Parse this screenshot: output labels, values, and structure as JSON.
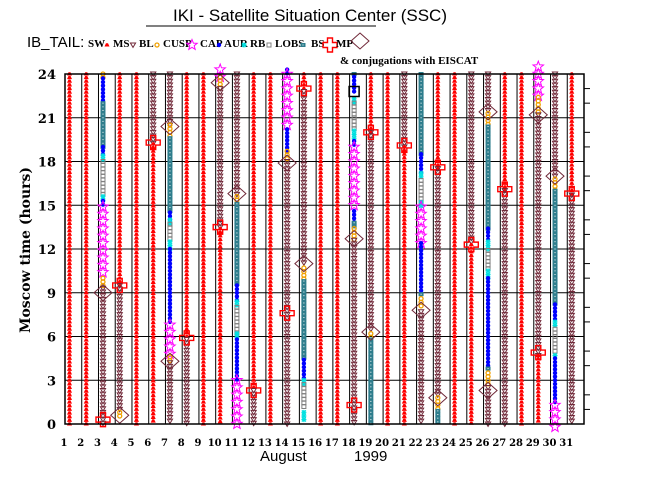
{
  "header": {
    "title": "IKI - Satellite Situation Center (SSC)",
    "mission": "IB_TAIL:",
    "legend": [
      {
        "key": "sw",
        "label": "SW",
        "color": "#ff0000"
      },
      {
        "key": "ms",
        "label": "MS",
        "color": "#702838"
      },
      {
        "key": "bl",
        "label": "BL",
        "color": "#f0a000"
      },
      {
        "key": "cusp",
        "label": "CUSP",
        "color": "#ff00ff"
      },
      {
        "key": "cap",
        "label": "CAP",
        "color": "#0000ff"
      },
      {
        "key": "aur",
        "label": "AUR",
        "color": "#00e0e0"
      },
      {
        "key": "rb",
        "label": "RB",
        "color": "#808080"
      },
      {
        "key": "lobs",
        "label": "LOBS",
        "color": "#2e7d8c"
      },
      {
        "key": "bs",
        "label": "BS",
        "color": "#ff0000"
      },
      {
        "key": "mp",
        "label": "MP",
        "color": "#702838"
      }
    ],
    "conjugation_note": "& conjugations with EISCAT"
  },
  "chart_data": {
    "type": "scatter",
    "xlabel_month": "August",
    "xlabel_year": "1999",
    "ylabel": "Moscow time (hours)",
    "xlim": [
      1,
      31
    ],
    "ylim": [
      0,
      24
    ],
    "x_ticks": [
      1,
      2,
      3,
      4,
      5,
      6,
      7,
      8,
      9,
      10,
      11,
      12,
      13,
      14,
      15,
      16,
      17,
      18,
      19,
      20,
      21,
      22,
      23,
      24,
      25,
      26,
      27,
      28,
      29,
      30,
      31
    ],
    "y_ticks": [
      0,
      3,
      6,
      9,
      12,
      15,
      18,
      21,
      24
    ],
    "grid": true,
    "days": [
      {
        "day": 1,
        "segments": [
          [
            "sw",
            24,
            0
          ]
        ],
        "events": []
      },
      {
        "day": 2,
        "segments": [
          [
            "sw",
            24,
            0
          ]
        ],
        "events": []
      },
      {
        "day": 3,
        "segments": [
          [
            "bl",
            24,
            23.7
          ],
          [
            "cap",
            23.7,
            22
          ],
          [
            "lobs",
            22,
            19
          ],
          [
            "cap",
            19,
            18.4
          ],
          [
            "aur",
            18.4,
            18
          ],
          [
            "rb",
            18,
            15.6
          ],
          [
            "aur",
            15.6,
            15.3
          ],
          [
            "cap",
            15.3,
            14.9
          ],
          [
            "cusp",
            14.9,
            10
          ],
          [
            "bl",
            10,
            9.3
          ],
          [
            "ms",
            9.3,
            0
          ]
        ],
        "events": [
          [
            "mp",
            9
          ],
          [
            "bs",
            0.3
          ]
        ]
      },
      {
        "day": 4,
        "segments": [
          [
            "sw",
            24,
            9.5
          ],
          [
            "ms",
            9.5,
            0.8
          ],
          [
            "bl",
            0.8,
            0.4
          ]
        ],
        "events": [
          [
            "bs",
            9.5
          ],
          [
            "mp",
            0.6
          ]
        ]
      },
      {
        "day": 5,
        "segments": [
          [
            "sw",
            24,
            0
          ]
        ],
        "events": []
      },
      {
        "day": 6,
        "segments": [
          [
            "ms",
            24,
            19.2
          ],
          [
            "sw",
            19.2,
            0
          ]
        ],
        "events": [
          [
            "bs",
            19.3
          ]
        ]
      },
      {
        "day": 7,
        "segments": [
          [
            "ms",
            24,
            20.5
          ],
          [
            "bl",
            20.5,
            19.6
          ],
          [
            "lobs",
            19.6,
            14.5
          ],
          [
            "cap",
            14.5,
            14
          ],
          [
            "aur",
            14,
            13.7
          ],
          [
            "rb",
            13.7,
            12.5
          ],
          [
            "aur",
            12.5,
            12
          ],
          [
            "cap",
            12,
            6.8
          ],
          [
            "cusp",
            6.8,
            4.6
          ],
          [
            "bl",
            4.6,
            4.2
          ],
          [
            "ms",
            4.2,
            0
          ]
        ],
        "events": [
          [
            "mp",
            20.4
          ],
          [
            "mp",
            4.3
          ]
        ]
      },
      {
        "day": 8,
        "segments": [
          [
            "sw",
            24,
            5.8
          ],
          [
            "ms",
            5.8,
            0
          ]
        ],
        "events": [
          [
            "bs",
            5.9
          ]
        ]
      },
      {
        "day": 9,
        "segments": [
          [
            "sw",
            24,
            0
          ]
        ],
        "events": []
      },
      {
        "day": 10,
        "segments": [
          [
            "cusp",
            24.3,
            23.8
          ],
          [
            "bl",
            23.8,
            23
          ],
          [
            "ms",
            23,
            13.4
          ],
          [
            "sw",
            13.4,
            0
          ]
        ],
        "events": [
          [
            "mp",
            23.4
          ],
          [
            "bs",
            13.5
          ]
        ]
      },
      {
        "day": 11,
        "segments": [
          [
            "ms",
            24,
            15.6
          ],
          [
            "bl",
            15.6,
            15.1
          ],
          [
            "lobs",
            15.1,
            9.5
          ],
          [
            "cap",
            9.5,
            8.4
          ],
          [
            "aur",
            8.4,
            8
          ],
          [
            "rb",
            8,
            6.2
          ],
          [
            "aur",
            6.2,
            5.8
          ],
          [
            "cap",
            5.8,
            3
          ],
          [
            "cusp",
            3,
            -0.3
          ]
        ],
        "events": [
          [
            "mp",
            15.8
          ]
        ]
      },
      {
        "day": 12,
        "segments": [
          [
            "sw",
            24,
            2.3
          ],
          [
            "ms",
            2.3,
            0
          ]
        ],
        "events": [
          [
            "bs",
            2.3
          ]
        ]
      },
      {
        "day": 13,
        "segments": [
          [
            "sw",
            24,
            0
          ]
        ],
        "events": []
      },
      {
        "day": 14,
        "segments": [
          [
            "cap",
            24.3,
            24
          ],
          [
            "cusp",
            24,
            20.2
          ],
          [
            "cap",
            20.2,
            18.7
          ],
          [
            "bl",
            18.7,
            18
          ],
          [
            "ms",
            18,
            0
          ]
        ],
        "events": [
          [
            "mp",
            17.9
          ],
          [
            "bs",
            7.6
          ]
        ]
      },
      {
        "day": 15,
        "segments": [
          [
            "sw",
            24,
            22.8
          ],
          [
            "ms",
            22.8,
            11
          ],
          [
            "bl",
            10.7,
            9.8
          ],
          [
            "lobs",
            9.8,
            4.4
          ],
          [
            "cap",
            4.4,
            3
          ],
          [
            "aur",
            3,
            2.7
          ],
          [
            "rb",
            2.7,
            1
          ],
          [
            "aur",
            0.8,
            0.3
          ]
        ],
        "events": [
          [
            "bs",
            23
          ],
          [
            "mp",
            11
          ]
        ]
      },
      {
        "day": 16,
        "segments": [
          [
            "sw",
            24,
            0
          ]
        ],
        "events": []
      },
      {
        "day": 17,
        "segments": [
          [
            "sw",
            24,
            0
          ]
        ],
        "events": []
      },
      {
        "day": 18,
        "segments": [
          [
            "lobs",
            24,
            23.8
          ],
          [
            "cap",
            23.8,
            22.6
          ],
          [
            "aur",
            22.3,
            22
          ],
          [
            "rb",
            22,
            20.2
          ],
          [
            "aur",
            20.1,
            19.4
          ],
          [
            "cap",
            19.4,
            19
          ],
          [
            "cusp",
            19,
            14.6
          ],
          [
            "cap",
            14.6,
            13.8
          ],
          [
            "lobs",
            13.8,
            13.5
          ],
          [
            "bl",
            13.4,
            12.6
          ],
          [
            "ms",
            12.6,
            0
          ]
        ],
        "events": [
          [
            "eiscat",
            22.8
          ],
          [
            "mp",
            12.7
          ],
          [
            "bs",
            1.3
          ]
        ]
      },
      {
        "day": 19,
        "segments": [
          [
            "sw",
            24,
            20
          ],
          [
            "ms",
            20,
            6.3
          ],
          [
            "bl",
            6.2,
            5.8
          ],
          [
            "lobs",
            5.8,
            0
          ]
        ],
        "events": [
          [
            "bs",
            20
          ],
          [
            "mp",
            6.3
          ]
        ]
      },
      {
        "day": 20,
        "segments": [
          [
            "sw",
            24,
            0
          ]
        ],
        "events": []
      },
      {
        "day": 21,
        "segments": [
          [
            "ms",
            24,
            19
          ],
          [
            "sw",
            19,
            0
          ]
        ],
        "events": [
          [
            "bs",
            19.1
          ]
        ]
      },
      {
        "day": 22,
        "segments": [
          [
            "lobs",
            24,
            18.5
          ],
          [
            "cap",
            18.5,
            17.2
          ],
          [
            "aur",
            17.2,
            16.8
          ],
          [
            "rb",
            16.7,
            15.2
          ],
          [
            "aur",
            15.2,
            14.9
          ],
          [
            "cusp",
            14.9,
            12.4
          ],
          [
            "cap",
            12.4,
            8.9
          ],
          [
            "lobs",
            8.9,
            8.7
          ],
          [
            "bl",
            8.6,
            7.9
          ],
          [
            "ms",
            7.7,
            0
          ]
        ],
        "events": [
          [
            "mp",
            7.8
          ]
        ]
      },
      {
        "day": 23,
        "segments": [
          [
            "sw",
            24,
            17.5
          ],
          [
            "ms",
            17.5,
            1.9
          ],
          [
            "bl",
            1.8,
            1
          ],
          [
            "lobs",
            0.9,
            0
          ]
        ],
        "events": [
          [
            "bs",
            17.6
          ],
          [
            "mp",
            1.8
          ]
        ]
      },
      {
        "day": 24,
        "segments": [
          [
            "sw",
            24,
            0
          ]
        ],
        "events": []
      },
      {
        "day": 25,
        "segments": [
          [
            "ms",
            24,
            12.3
          ],
          [
            "sw",
            12.3,
            0
          ]
        ],
        "events": [
          [
            "bs",
            12.3
          ]
        ]
      },
      {
        "day": 26,
        "segments": [
          [
            "ms",
            24,
            21.5
          ],
          [
            "bl",
            21.3,
            20.4
          ],
          [
            "lobs",
            20.4,
            13.4
          ],
          [
            "cap",
            13.4,
            12.5
          ],
          [
            "aur",
            12.5,
            11.9
          ],
          [
            "rb",
            11.9,
            10.5
          ],
          [
            "aur",
            10.5,
            10
          ],
          [
            "cap",
            10,
            3.9
          ],
          [
            "lobs",
            3.8,
            3.6
          ],
          [
            "bl",
            3.5,
            2.7
          ],
          [
            "ms",
            2.5,
            0
          ]
        ],
        "events": [
          [
            "mp",
            21.4
          ],
          [
            "mp",
            2.3
          ]
        ]
      },
      {
        "day": 27,
        "segments": [
          [
            "sw",
            24,
            16
          ],
          [
            "ms",
            16,
            0
          ]
        ],
        "events": [
          [
            "bs",
            16.1
          ]
        ]
      },
      {
        "day": 28,
        "segments": [
          [
            "sw",
            24,
            0
          ]
        ],
        "events": []
      },
      {
        "day": 29,
        "segments": [
          [
            "cusp",
            24.5,
            22.5
          ],
          [
            "bl",
            22.4,
            21.4
          ],
          [
            "ms",
            21.2,
            4.7
          ],
          [
            "sw",
            4.7,
            0
          ]
        ],
        "events": [
          [
            "mp",
            21.2
          ],
          [
            "bs",
            4.9
          ]
        ]
      },
      {
        "day": 30,
        "segments": [
          [
            "ms",
            24,
            17
          ],
          [
            "bl",
            16.8,
            16
          ],
          [
            "lobs",
            16,
            8.2
          ],
          [
            "cap",
            8.2,
            7
          ],
          [
            "aur",
            7,
            6.6
          ],
          [
            "rb",
            6.5,
            4.8
          ],
          [
            "aur",
            4.7,
            4.5
          ],
          [
            "cap",
            4.5,
            1.3
          ],
          [
            "cusp",
            1.3,
            -0.3
          ]
        ],
        "events": [
          [
            "mp",
            17
          ]
        ]
      },
      {
        "day": 31,
        "segments": [
          [
            "sw",
            24,
            15.7
          ],
          [
            "ms",
            15.7,
            0
          ]
        ],
        "events": [
          [
            "bs",
            15.8
          ]
        ]
      }
    ]
  }
}
